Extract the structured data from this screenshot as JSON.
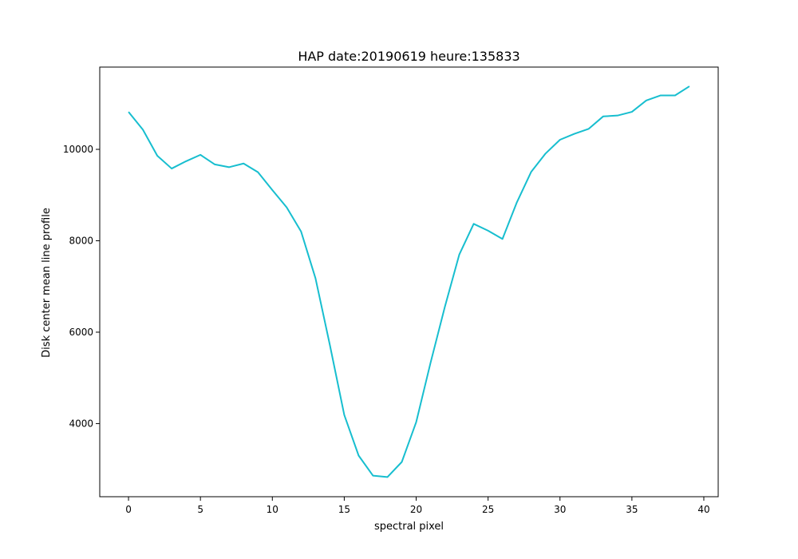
{
  "chart_data": {
    "type": "line",
    "title": "HAP date:20190619 heure:135833",
    "xlabel": "spectral pixel",
    "ylabel": "Disk center mean line profile",
    "xlim": [
      -2,
      41
    ],
    "ylim": [
      2400,
      11800
    ],
    "xticks": [
      0,
      5,
      10,
      15,
      20,
      25,
      30,
      35,
      40
    ],
    "yticks": [
      4000,
      6000,
      8000,
      10000
    ],
    "grid": false,
    "legend": "none",
    "line_color": "#17becf",
    "series": [
      {
        "x": [
          0,
          1,
          2,
          3,
          4,
          5,
          6,
          7,
          8,
          9,
          10,
          11,
          12,
          13,
          14,
          15,
          16,
          17,
          18,
          19,
          20,
          21,
          22,
          23,
          24,
          25,
          26,
          27,
          28,
          29,
          30,
          31,
          32,
          33,
          34,
          35,
          36,
          37,
          38,
          39
        ],
        "values": [
          10820,
          10430,
          9860,
          9580,
          9740,
          9880,
          9670,
          9610,
          9690,
          9500,
          9110,
          8730,
          8200,
          7180,
          5720,
          4190,
          3300,
          2860,
          2830,
          3160,
          4030,
          5330,
          6560,
          7700,
          8370,
          8220,
          8040,
          8840,
          9510,
          9910,
          10210,
          10340,
          10450,
          10720,
          10740,
          10820,
          11070,
          11180,
          11180,
          11380
        ]
      }
    ]
  }
}
